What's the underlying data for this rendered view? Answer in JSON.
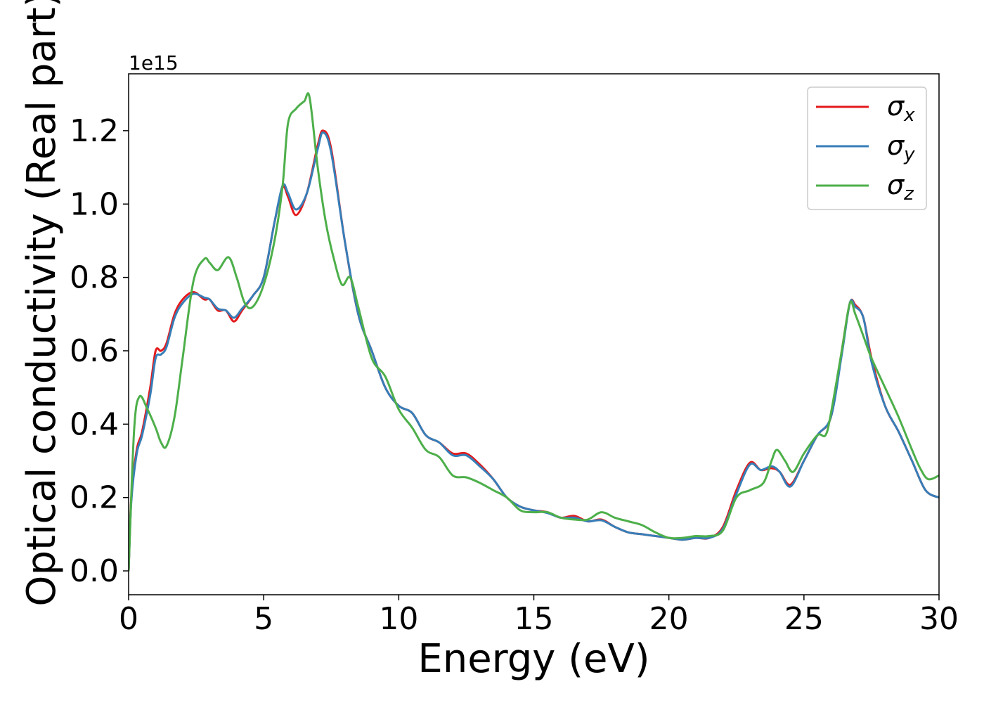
{
  "chart_data": {
    "type": "line",
    "xlabel": "Energy (eV)",
    "ylabel": "Optical conductivity (Real part)",
    "y_offset_text": "1e15",
    "xlim": [
      0,
      30
    ],
    "ylim": [
      -0.065,
      1.355
    ],
    "x_ticks": [
      0,
      5,
      10,
      15,
      20,
      25,
      30
    ],
    "x_tick_labels": [
      "0",
      "5",
      "10",
      "15",
      "20",
      "25",
      "30"
    ],
    "y_ticks": [
      0.0,
      0.2,
      0.4,
      0.6,
      0.8,
      1.0,
      1.2
    ],
    "y_tick_labels": [
      "0.0",
      "0.2",
      "0.4",
      "0.6",
      "0.8",
      "1.0",
      "1.2"
    ],
    "grid": false,
    "legend_position": "top-right",
    "series": [
      {
        "name": "σx",
        "legend_base": "σ",
        "legend_sub": "x",
        "color": "#e41a1c",
        "x": [
          0,
          0.1,
          0.3,
          0.5,
          0.8,
          1.0,
          1.2,
          1.4,
          1.7,
          2.0,
          2.4,
          2.8,
          3.0,
          3.3,
          3.6,
          3.9,
          4.2,
          4.6,
          5.0,
          5.4,
          5.7,
          5.9,
          6.2,
          6.6,
          7.0,
          7.2,
          7.5,
          8.0,
          8.5,
          9.0,
          9.5,
          10.0,
          10.5,
          11.0,
          11.5,
          12.0,
          12.5,
          13.0,
          13.5,
          14.0,
          14.5,
          15.0,
          15.5,
          16.0,
          16.5,
          17.0,
          17.5,
          18.0,
          18.5,
          19.0,
          19.5,
          20.0,
          20.5,
          21.0,
          21.5,
          22.0,
          22.5,
          23.0,
          23.4,
          23.8,
          24.1,
          24.5,
          25.0,
          25.5,
          26.0,
          26.4,
          26.7,
          26.9,
          27.2,
          27.5,
          28.0,
          28.5,
          29.0,
          29.5,
          30.0
        ],
        "y": [
          0.0,
          0.2,
          0.33,
          0.38,
          0.5,
          0.6,
          0.6,
          0.62,
          0.7,
          0.74,
          0.76,
          0.74,
          0.74,
          0.71,
          0.71,
          0.68,
          0.71,
          0.75,
          0.8,
          0.95,
          1.045,
          1.02,
          0.97,
          1.03,
          1.16,
          1.2,
          1.15,
          0.9,
          0.7,
          0.6,
          0.5,
          0.45,
          0.43,
          0.37,
          0.35,
          0.32,
          0.32,
          0.29,
          0.25,
          0.2,
          0.175,
          0.165,
          0.16,
          0.145,
          0.15,
          0.135,
          0.14,
          0.12,
          0.105,
          0.1,
          0.095,
          0.09,
          0.085,
          0.09,
          0.09,
          0.12,
          0.22,
          0.295,
          0.275,
          0.28,
          0.27,
          0.235,
          0.3,
          0.37,
          0.42,
          0.6,
          0.73,
          0.725,
          0.69,
          0.58,
          0.45,
          0.38,
          0.3,
          0.22,
          0.2
        ]
      },
      {
        "name": "σy",
        "legend_base": "σ",
        "legend_sub": "y",
        "color": "#377eb8",
        "x": [
          0,
          0.1,
          0.3,
          0.5,
          0.8,
          1.0,
          1.2,
          1.4,
          1.7,
          2.0,
          2.4,
          2.8,
          3.0,
          3.3,
          3.6,
          3.9,
          4.2,
          4.6,
          5.0,
          5.4,
          5.7,
          5.9,
          6.2,
          6.6,
          7.0,
          7.2,
          7.5,
          8.0,
          8.5,
          9.0,
          9.5,
          10.0,
          10.5,
          11.0,
          11.5,
          12.0,
          12.5,
          13.0,
          13.5,
          14.0,
          14.5,
          15.0,
          15.5,
          16.0,
          16.5,
          17.0,
          17.5,
          18.0,
          18.5,
          19.0,
          19.5,
          20.0,
          20.5,
          21.0,
          21.5,
          22.0,
          22.5,
          23.0,
          23.4,
          23.8,
          24.1,
          24.5,
          25.0,
          25.5,
          26.0,
          26.4,
          26.7,
          26.9,
          27.2,
          27.5,
          28.0,
          28.5,
          29.0,
          29.5,
          30.0
        ],
        "y": [
          0.0,
          0.19,
          0.32,
          0.37,
          0.48,
          0.58,
          0.59,
          0.61,
          0.69,
          0.73,
          0.755,
          0.745,
          0.74,
          0.715,
          0.71,
          0.69,
          0.715,
          0.75,
          0.8,
          0.95,
          1.05,
          1.03,
          0.985,
          1.03,
          1.15,
          1.195,
          1.14,
          0.9,
          0.7,
          0.6,
          0.5,
          0.45,
          0.43,
          0.37,
          0.35,
          0.315,
          0.315,
          0.285,
          0.25,
          0.2,
          0.175,
          0.165,
          0.158,
          0.145,
          0.145,
          0.135,
          0.138,
          0.12,
          0.105,
          0.1,
          0.095,
          0.09,
          0.085,
          0.09,
          0.09,
          0.115,
          0.21,
          0.29,
          0.275,
          0.285,
          0.27,
          0.23,
          0.3,
          0.37,
          0.42,
          0.59,
          0.73,
          0.72,
          0.69,
          0.57,
          0.45,
          0.38,
          0.3,
          0.22,
          0.2
        ]
      },
      {
        "name": "σz",
        "legend_base": "σ",
        "legend_sub": "z",
        "color": "#4daf4a",
        "x": [
          0,
          0.2,
          0.4,
          0.7,
          1.0,
          1.2,
          1.4,
          1.7,
          2.0,
          2.4,
          2.8,
          3.0,
          3.3,
          3.7,
          4.0,
          4.3,
          4.6,
          5.0,
          5.4,
          5.7,
          5.9,
          6.2,
          6.5,
          6.7,
          7.0,
          7.3,
          7.6,
          7.9,
          8.2,
          8.5,
          9.0,
          9.5,
          10.0,
          10.5,
          11.0,
          11.5,
          12.0,
          12.5,
          13.0,
          13.5,
          14.0,
          14.5,
          15.0,
          15.5,
          16.0,
          16.5,
          17.0,
          17.5,
          18.0,
          18.5,
          19.0,
          19.5,
          20.0,
          20.5,
          21.0,
          21.5,
          22.0,
          22.5,
          23.0,
          23.5,
          23.8,
          24.0,
          24.3,
          24.6,
          25.0,
          25.5,
          25.8,
          26.0,
          26.4,
          26.7,
          26.9,
          27.2,
          27.5,
          28.0,
          28.5,
          29.0,
          29.3,
          29.6,
          30.0
        ],
        "y": [
          0.0,
          0.38,
          0.475,
          0.44,
          0.39,
          0.35,
          0.34,
          0.42,
          0.58,
          0.79,
          0.85,
          0.84,
          0.82,
          0.855,
          0.8,
          0.73,
          0.72,
          0.78,
          0.9,
          1.05,
          1.22,
          1.26,
          1.28,
          1.29,
          1.1,
          0.95,
          0.85,
          0.78,
          0.8,
          0.72,
          0.58,
          0.53,
          0.44,
          0.39,
          0.33,
          0.31,
          0.26,
          0.255,
          0.24,
          0.22,
          0.2,
          0.165,
          0.16,
          0.16,
          0.145,
          0.14,
          0.14,
          0.16,
          0.145,
          0.135,
          0.125,
          0.105,
          0.09,
          0.09,
          0.095,
          0.095,
          0.11,
          0.2,
          0.22,
          0.24,
          0.3,
          0.33,
          0.3,
          0.27,
          0.32,
          0.37,
          0.37,
          0.43,
          0.6,
          0.73,
          0.7,
          0.64,
          0.58,
          0.5,
          0.42,
          0.33,
          0.28,
          0.25,
          0.26
        ]
      }
    ]
  }
}
